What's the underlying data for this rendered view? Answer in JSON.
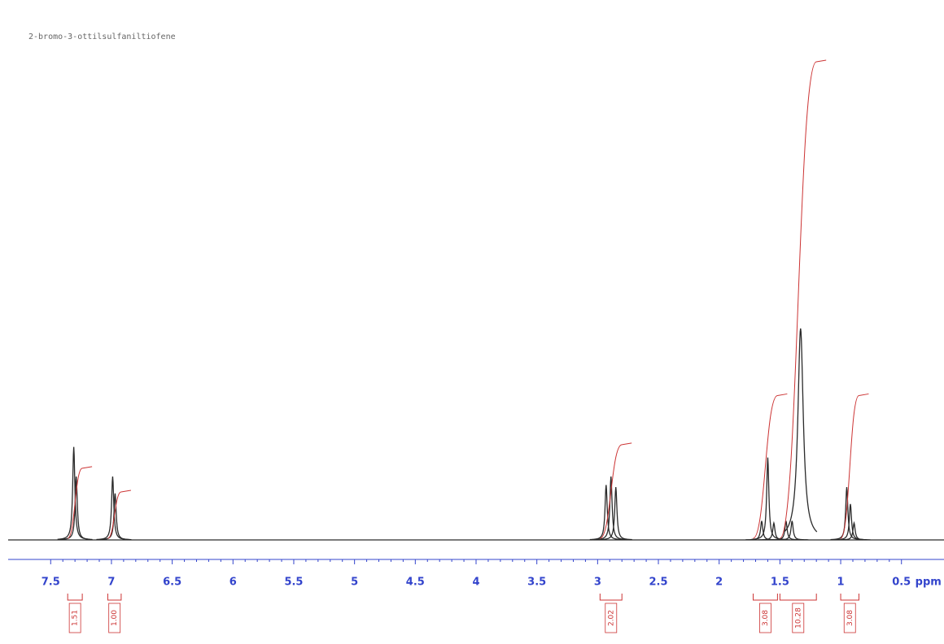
{
  "chart_data": {
    "type": "nmr",
    "title": "2-bromo-3-ottilsulfaniltiofene",
    "x_label": "ppm",
    "xlim": [
      7.85,
      0.15
    ],
    "xticks": [
      7.5,
      7.0,
      6.5,
      6.0,
      5.5,
      5.0,
      4.5,
      4.0,
      3.5,
      3.0,
      2.5,
      2.0,
      1.5,
      1.0,
      0.5
    ],
    "ylim": [
      0,
      100
    ],
    "color": "#2a2a2a",
    "axis_color": "#3344cc",
    "integral_color": "#cc3333",
    "peaks": {
      "x": [
        7.31,
        7.29,
        6.99,
        6.97,
        2.93,
        2.89,
        2.85,
        1.65,
        1.6,
        1.55,
        1.45,
        1.4,
        1.33,
        0.95,
        0.92,
        0.89
      ],
      "values": [
        44,
        30,
        30,
        22,
        26,
        30,
        25,
        9,
        39,
        8,
        9,
        9,
        100,
        25,
        17,
        8
      ]
    },
    "integrals": {
      "ranges": [
        [
          7.36,
          7.24
        ],
        [
          7.03,
          6.92
        ],
        [
          2.98,
          2.8
        ],
        [
          1.72,
          1.52
        ],
        [
          1.5,
          1.2
        ],
        [
          1.0,
          0.85
        ]
      ],
      "values": [
        1.51,
        1.0,
        2.02,
        3.08,
        10.28,
        3.08
      ],
      "value_labels": [
        "1.51",
        "1.00",
        "2.02",
        "3.08",
        "10.28",
        "3.08"
      ]
    }
  }
}
